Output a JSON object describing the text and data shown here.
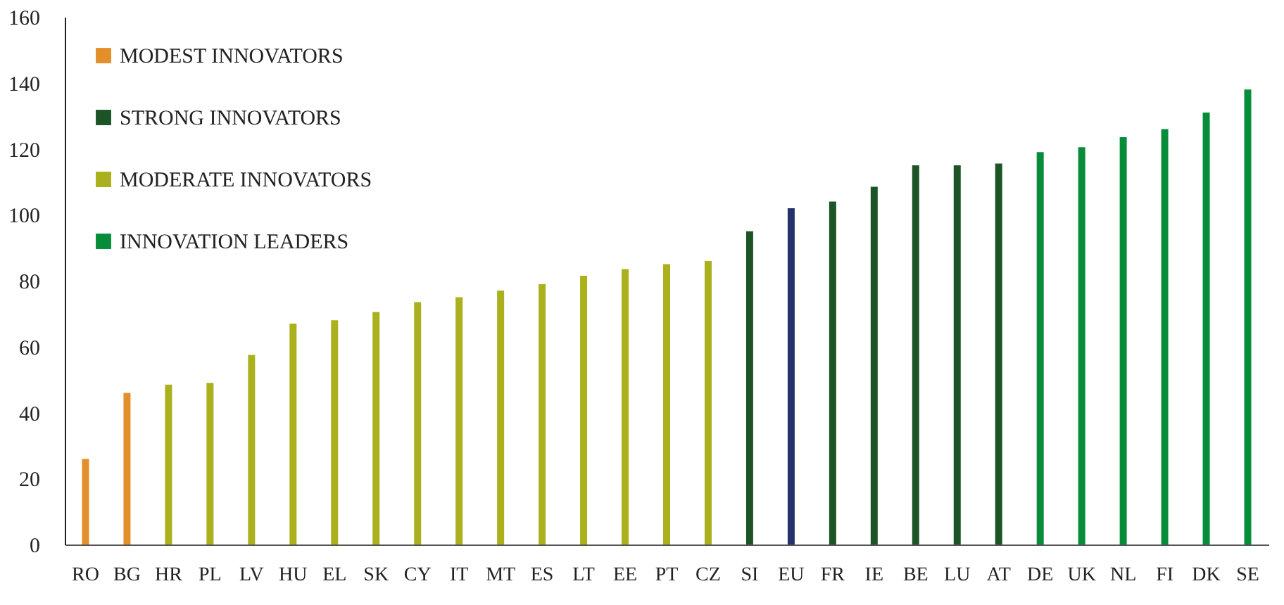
{
  "chart_data": {
    "type": "bar",
    "categories": [
      "RO",
      "BG",
      "HR",
      "PL",
      "LV",
      "HU",
      "EL",
      "SK",
      "CY",
      "IT",
      "MT",
      "ES",
      "LT",
      "EE",
      "PT",
      "CZ",
      "SI",
      "EU",
      "FR",
      "IE",
      "BE",
      "LU",
      "AT",
      "DE",
      "UK",
      "NL",
      "FI",
      "DK",
      "SE"
    ],
    "series": [
      {
        "name": "MODEST INNOVATORS",
        "color": "#e3902b",
        "values": [
          26,
          46,
          null,
          null,
          null,
          null,
          null,
          null,
          null,
          null,
          null,
          null,
          null,
          null,
          null,
          null,
          null,
          null,
          null,
          null,
          null,
          null,
          null,
          null,
          null,
          null,
          null,
          null,
          null
        ]
      },
      {
        "name": "STRONG INNOVATORS",
        "color": "#1c5428",
        "values": [
          null,
          null,
          null,
          null,
          null,
          null,
          null,
          null,
          null,
          null,
          null,
          null,
          null,
          null,
          null,
          null,
          95,
          null,
          104,
          108.5,
          115,
          115,
          115.5,
          null,
          null,
          null,
          null,
          null,
          null
        ]
      },
      {
        "name": "MODERATE INNOVATORS",
        "color": "#aab11c",
        "values": [
          null,
          null,
          48.5,
          49,
          57.5,
          67,
          68,
          70.5,
          73.5,
          75,
          77,
          79,
          81.5,
          83.5,
          85,
          86,
          null,
          null,
          null,
          null,
          null,
          null,
          null,
          null,
          null,
          null,
          null,
          null,
          null
        ]
      },
      {
        "name": "INNOVATION LEADERS",
        "color": "#078c3a",
        "values": [
          null,
          null,
          null,
          null,
          null,
          null,
          null,
          null,
          null,
          null,
          null,
          null,
          null,
          null,
          null,
          null,
          null,
          null,
          null,
          null,
          null,
          null,
          null,
          119,
          120.5,
          123.5,
          126,
          131,
          138
        ]
      },
      {
        "color": "#24326c",
        "values": [
          null,
          null,
          null,
          null,
          null,
          null,
          null,
          null,
          null,
          null,
          null,
          null,
          null,
          null,
          null,
          null,
          null,
          102,
          null,
          null,
          null,
          null,
          null,
          null,
          null,
          null,
          null,
          null,
          null
        ]
      }
    ],
    "ylim": [
      0,
      160
    ],
    "yticks": [
      0,
      20,
      40,
      60,
      80,
      100,
      120,
      140,
      160
    ],
    "grid": false,
    "legend": "top left"
  }
}
